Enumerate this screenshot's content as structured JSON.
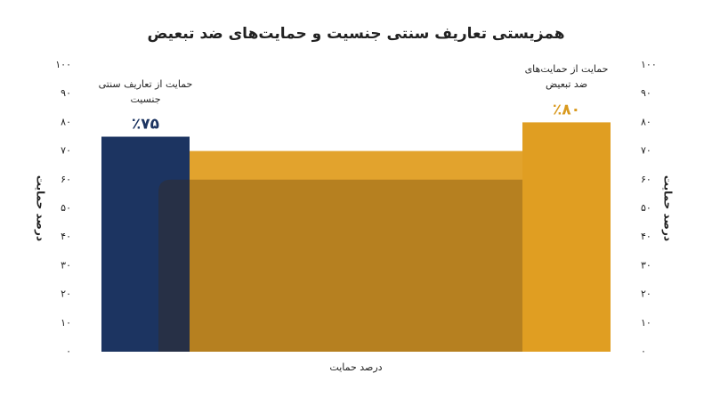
{
  "chart_data": {
    "type": "bar",
    "title": "همزیستی تعاریف سنتی جنسیت و حمایت‌های ضد تبعیض",
    "categories": [
      "حمایت از تعاریف سنتی جنسیت",
      "حمایت از حمایت‌های ضد تبعیض"
    ],
    "values": [
      75,
      80
    ],
    "value_labels": [
      "٪۷۵",
      "٪۸۰"
    ],
    "colors": [
      "#1c3461",
      "#e09e22"
    ],
    "label_colors": [
      "#1c3461",
      "#d99a1f"
    ],
    "overlap": {
      "values": [
        70,
        60
      ],
      "colors": [
        "#e2a32d",
        "rgba(70,40,0,0.28)"
      ]
    },
    "x_label": "درصد حمایت",
    "y_label": "درصد حمایت",
    "y2_label": "درصد حمایت",
    "ylim": [
      0,
      100
    ],
    "yticks": [
      {
        "value": 0,
        "label": "۰"
      },
      {
        "value": 10,
        "label": "۱۰"
      },
      {
        "value": 20,
        "label": "۲۰"
      },
      {
        "value": 30,
        "label": "۳۰"
      },
      {
        "value": 40,
        "label": "۴۰"
      },
      {
        "value": 50,
        "label": "۵۰"
      },
      {
        "value": 60,
        "label": "۶۰"
      },
      {
        "value": 70,
        "label": "۷۰"
      },
      {
        "value": 80,
        "label": "۸۰"
      },
      {
        "value": 90,
        "label": "۹۰"
      },
      {
        "value": 100,
        "label": "۱۰۰"
      }
    ],
    "y2lim": [
      0,
      100
    ],
    "y2ticks": [
      {
        "value": 0,
        "label": "۰"
      },
      {
        "value": 10,
        "label": "۱۰"
      },
      {
        "value": 20,
        "label": "۲۰"
      },
      {
        "value": 30,
        "label": "۳۰"
      },
      {
        "value": 40,
        "label": "۴۰"
      },
      {
        "value": 50,
        "label": "۵۰"
      },
      {
        "value": 60,
        "label": "۶۰"
      },
      {
        "value": 70,
        "label": "۷۰"
      },
      {
        "value": 80,
        "label": "۸۰"
      },
      {
        "value": 90,
        "label": "۹۰"
      },
      {
        "value": 100,
        "label": "۱۰۰"
      }
    ]
  }
}
